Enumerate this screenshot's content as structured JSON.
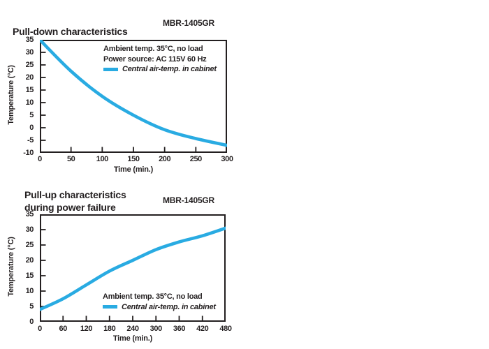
{
  "style": {
    "ink": "#231f20",
    "accent_cyan": "#29ABE2",
    "background": "#ffffff"
  },
  "chart_data": [
    {
      "type": "line",
      "title": "Pull-down characteristics",
      "model": "MBR-1405GR",
      "xlabel": "Time (min.)",
      "ylabel": "Temperature (°C)",
      "annotation_lines": [
        "Ambient temp. 35°C, no load",
        "Power source: AC 115V 60 Hz"
      ],
      "legend": {
        "label": "Central air-temp. in cabinet",
        "color": "#29ABE2",
        "position": "inside top-right"
      },
      "xlim": [
        0,
        300
      ],
      "ylim": [
        -10,
        35
      ],
      "xticks": [
        0,
        50,
        100,
        150,
        200,
        250,
        300
      ],
      "yticks": [
        35,
        30,
        25,
        20,
        15,
        10,
        5,
        0,
        -5,
        -10
      ],
      "grid": false,
      "series": [
        {
          "name": "Central air-temp. in cabinet",
          "x": [
            0,
            50,
            100,
            150,
            200,
            250,
            300
          ],
          "y": [
            35,
            22.5,
            12.5,
            5,
            -0.8,
            -4.3,
            -7
          ]
        }
      ]
    },
    {
      "type": "line",
      "title": "Pull-up characteristics\nduring power failure",
      "model": "MBR-1405GR",
      "xlabel": "Time (min.)",
      "ylabel": "Temperature (°C)",
      "annotation_lines": [
        "Ambient temp. 35°C, no load"
      ],
      "legend": {
        "label": "Central air-temp. in cabinet",
        "color": "#29ABE2",
        "position": "inside bottom-right"
      },
      "xlim": [
        0,
        480
      ],
      "ylim": [
        0,
        35
      ],
      "xticks": [
        0,
        60,
        120,
        180,
        240,
        300,
        360,
        420,
        480
      ],
      "yticks": [
        35,
        30,
        25,
        20,
        15,
        10,
        5,
        0
      ],
      "grid": false,
      "series": [
        {
          "name": "Central air-temp. in cabinet",
          "x": [
            0,
            60,
            120,
            180,
            240,
            300,
            360,
            420,
            480
          ],
          "y": [
            4,
            7.5,
            12,
            16.5,
            20,
            23.5,
            26,
            28,
            30.5
          ]
        }
      ]
    }
  ]
}
